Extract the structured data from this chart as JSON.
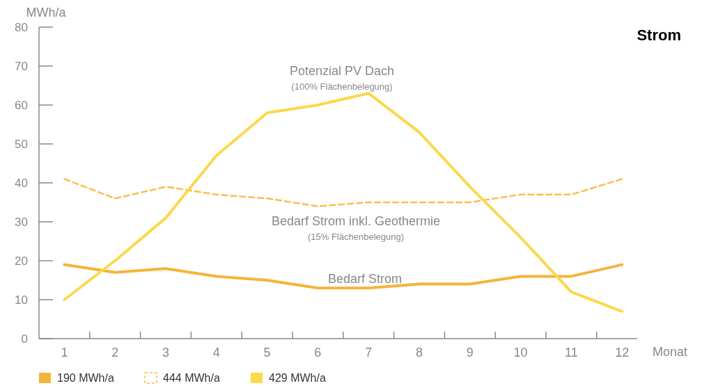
{
  "chart_data": {
    "type": "line",
    "title": "Strom",
    "ylabel": "MWh/a",
    "xlabel": "Monat",
    "x": [
      1,
      2,
      3,
      4,
      5,
      6,
      7,
      8,
      9,
      10,
      11,
      12
    ],
    "xlim": [
      0.5,
      12.3
    ],
    "xticks": [
      1,
      {
        "value": 1.5,
        "label": null
      },
      2,
      {
        "value": 2.5,
        "label": null
      },
      3,
      {
        "value": 3.5,
        "label": null
      },
      4,
      {
        "value": 4.5,
        "label": null
      },
      5,
      {
        "value": 5.5,
        "label": null
      },
      6,
      {
        "value": 6.5,
        "label": null
      },
      7,
      {
        "value": 7.5,
        "label": null
      },
      8,
      {
        "value": 8.5,
        "label": null
      },
      9,
      {
        "value": 9.5,
        "label": null
      },
      10,
      {
        "value": 10.5,
        "label": null
      },
      11,
      {
        "value": 11.5,
        "label": null
      },
      12
    ],
    "ylim": [
      0,
      80
    ],
    "yticks": [
      0,
      10,
      20,
      30,
      40,
      50,
      60,
      70,
      80
    ],
    "grid": false,
    "legend": "bottom",
    "series": [
      {
        "name": "190 MWh/a",
        "color": "#f4b43a",
        "line_style": "solid",
        "values": [
          19,
          17,
          18,
          16,
          15,
          13,
          13,
          14,
          14,
          16,
          16,
          19
        ]
      },
      {
        "name": "444 MWh/a",
        "color": "#f6c04a",
        "line_style": "dashed",
        "values": [
          41,
          36,
          39,
          37,
          36,
          34,
          35,
          35,
          35,
          37,
          37,
          41
        ]
      },
      {
        "name": "429 MWh/a",
        "color": "#fbd84c",
        "line_style": "solid",
        "values": [
          10,
          20,
          31,
          47,
          58,
          60,
          63,
          53,
          39,
          26,
          12,
          7
        ]
      }
    ],
    "annotations": [
      "Potenzial  PV Dach",
      "(100% Flächenbelegung)",
      "Bedarf Strom inkl. Geothermie",
      "(15% Flächenbelegung)",
      "Bedarf Strom"
    ]
  }
}
